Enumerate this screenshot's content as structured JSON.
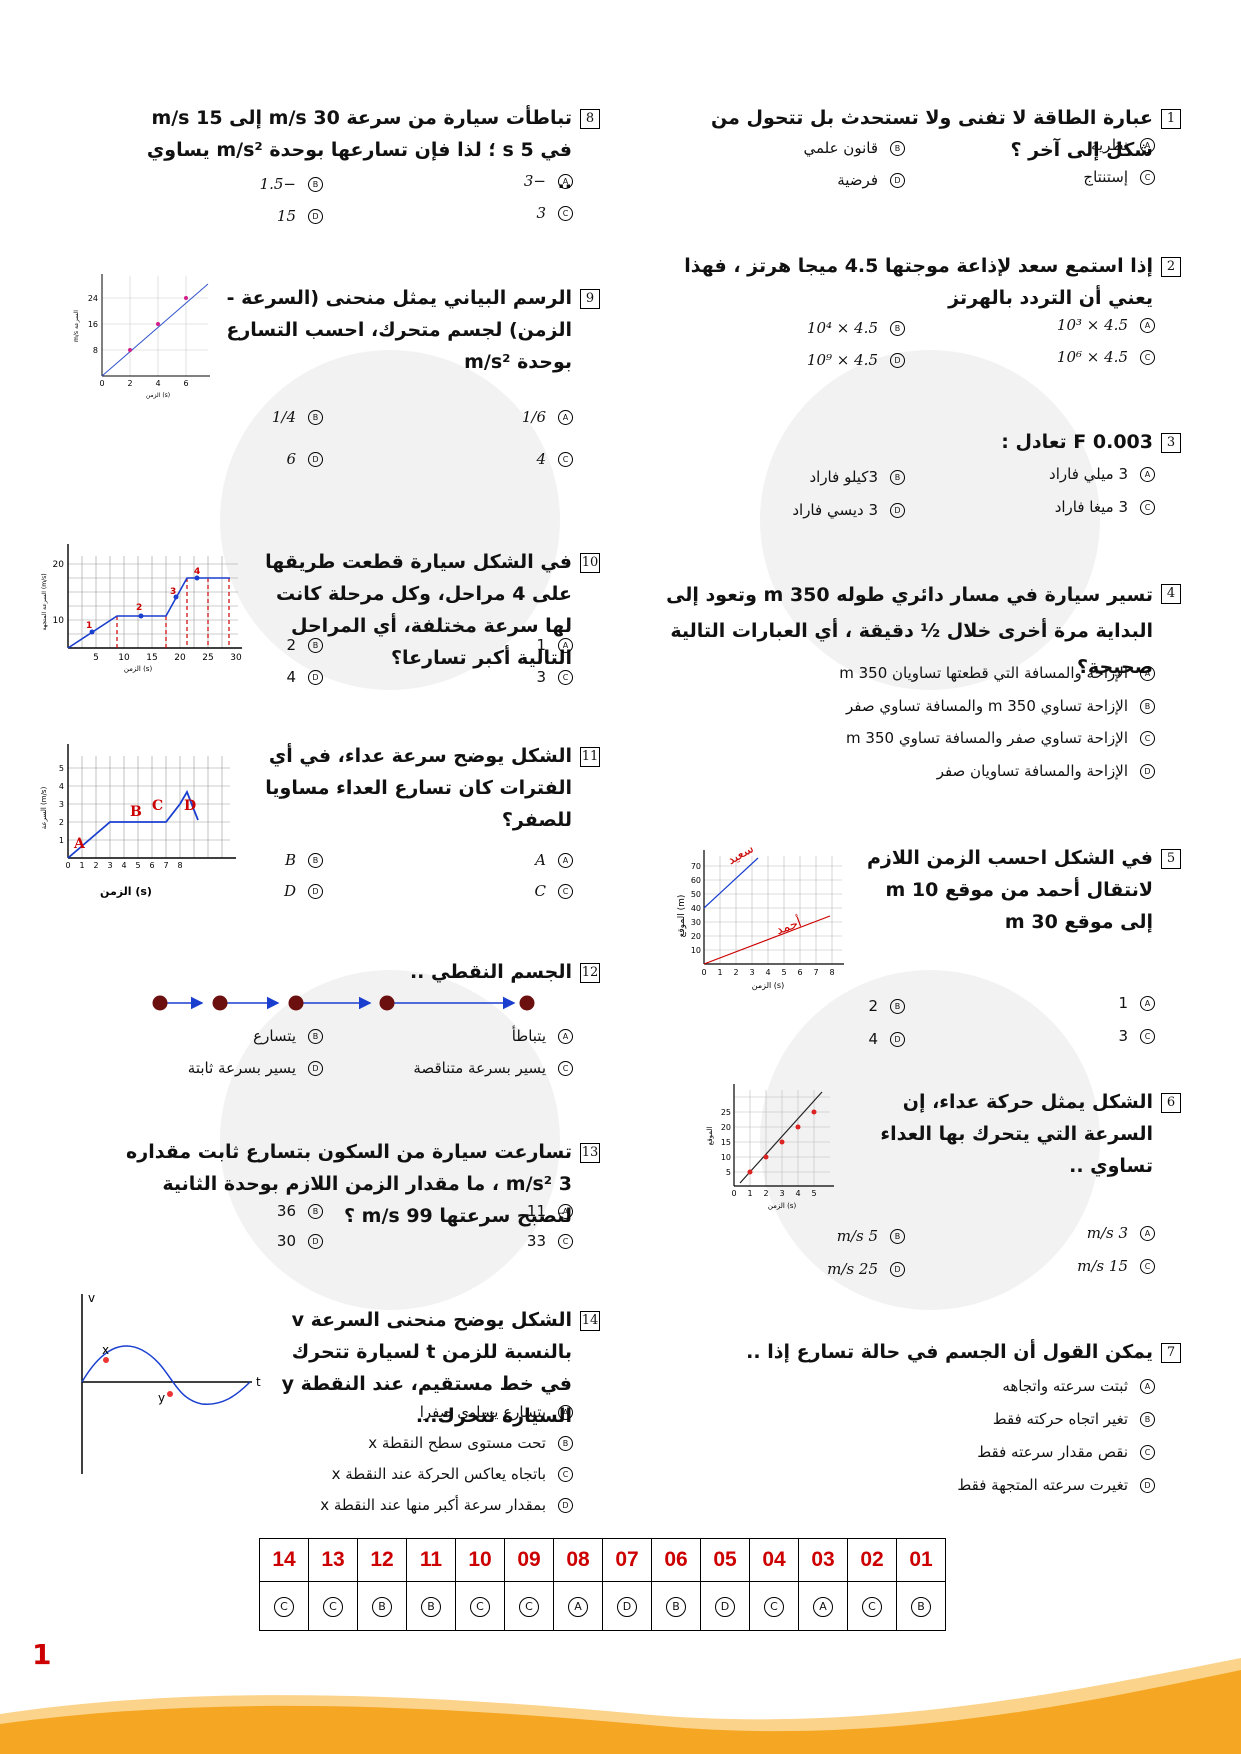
{
  "questions": {
    "q1": {
      "num": "1",
      "text": "عبارة الطاقة لا تفنى ولا تستحدث بل تتحول من شكل إلى آخر ؟",
      "options": {
        "A": "نظرية",
        "B": "قانون علمي",
        "C": "إستنتاج",
        "D": "فرضية"
      }
    },
    "q2": {
      "num": "2",
      "text": "إذا استمع سعد لإذاعة موجتها 4.5 ميجا هرتز ، فهذا يعني أن التردد بالهرتز",
      "options": {
        "A": "4.5 × 10³",
        "B": "4.5 × 10⁴",
        "C": "4.5 × 10⁶",
        "D": "4.5 × 10⁹"
      }
    },
    "q3": {
      "num": "3",
      "text": "F 0.003 تعادل :",
      "options": {
        "A": "3 ميلي فاراد",
        "B": "3كيلو فاراد",
        "C": "3 ميغا فاراد",
        "D": "3 ديسي فاراد"
      }
    },
    "q4": {
      "num": "4",
      "text": "تسير سيارة في مسار دائري طوله 350 m وتعود إلى البداية مرة أخرى خلال ½ دقيقة ، أي العبارات التالية صحيحة؟",
      "options": {
        "A": "الإزاحة والمسافة التي قطعتها تساويان 350 m",
        "B": "الإزاحة تساوي 350 m والمسافة تساوي صفر",
        "C": "الإزاحة تساوي صفر والمسافة تساوي 350 m",
        "D": "الإزاحة والمسافة تساويان صفر"
      }
    },
    "q5": {
      "num": "5",
      "text": "في الشكل احسب الزمن اللازم لانتقال أحمد من موقع 10 m إلى موقع 30 m",
      "options": {
        "A": "1",
        "B": "2",
        "C": "3",
        "D": "4"
      }
    },
    "q6": {
      "num": "6",
      "text": "الشكل يمثل حركة عداء، إن السرعة التي يتحرك بها العداء تساوي ..",
      "options": {
        "A": "3 m/s",
        "B": "5 m/s",
        "C": "15 m/s",
        "D": "25 m/s"
      }
    },
    "q7": {
      "num": "7",
      "text": "يمكن القول أن الجسم في حالة تسارع إذا ..",
      "options": {
        "A": "ثبتت سرعته واتجاهه",
        "B": "تغير اتجاه حركته فقط",
        "C": "نقص مقدار سرعته فقط",
        "D": "تغيرت سرعته المتجهة فقط"
      }
    },
    "q8": {
      "num": "8",
      "text": "تباطأت سيارة من سرعة 30 m/s إلى 15 m/s في 5 s ؛ لذا فإن تسارعها بوحدة m/s² يساوي ..",
      "options": {
        "A": "−3",
        "B": "−1.5",
        "C": "3",
        "D": "15"
      }
    },
    "q9": {
      "num": "9",
      "text": "الرسم البياني يمثل منحنى (السرعة - الزمن) لجسم متحرك، احسب التسارع بوحدة m/s²",
      "options": {
        "A": "1/6",
        "B": "1/4",
        "C": "4",
        "D": "6"
      }
    },
    "q10": {
      "num": "10",
      "text": "في الشكل سيارة قطعت طريقها على 4 مراحل، وكل مرحلة كانت لها سرعة مختلفة، أي المراحل التالية أكبر تسارعا؟",
      "options": {
        "A": "1",
        "B": "2",
        "C": "3",
        "D": "4"
      }
    },
    "q11": {
      "num": "11",
      "text": "الشكل يوضح سرعة عداء، في أي الفترات كان تسارع العداء مساويا للصفر؟",
      "options": {
        "A": "A",
        "B": "B",
        "C": "C",
        "D": "D"
      }
    },
    "q12": {
      "num": "12",
      "text": "الجسم النقطي ..",
      "options": {
        "A": "يتباطأ",
        "B": "يتسارع",
        "C": "يسير بسرعة متناقصة",
        "D": "يسير بسرعة ثابتة"
      }
    },
    "q13": {
      "num": "13",
      "text": "تسارعت سيارة من السكون بتسارع ثابت مقداره 3 m/s² ، ما مقدار الزمن اللازم بوحدة الثانية لتصبح سرعتها 99 m/s ؟",
      "options": {
        "A": "11",
        "B": "36",
        "C": "33",
        "D": "30"
      }
    },
    "q14": {
      "num": "14",
      "text": "الشكل يوضح منحنى السرعة v بالنسبة للزمن t لسيارة تتحرك في خط مستقيم، عند النقطة y السيارة تتحرك...",
      "options": {
        "A": "بتسارع يساوي صفرا",
        "B": "تحت مستوى سطح النقطة x",
        "C": "باتجاه يعاكس الحركة عند النقطة x",
        "D": "بمقدار سرعة أكبر منها عند النقطة x"
      }
    }
  },
  "figures": {
    "q5": {
      "ylabel": "الموقع (m)",
      "xlabel": "الزمن (s)",
      "label_saeed": "سعيد",
      "label_ahmed": "أحمد",
      "yticks": [
        "10",
        "20",
        "30",
        "40",
        "50",
        "60",
        "70"
      ],
      "xticks": [
        "0",
        "1",
        "2",
        "3",
        "4",
        "5",
        "6",
        "7",
        "8"
      ]
    },
    "q6": {
      "ylabel": "الموقع",
      "xlabel": "الزمن (s)",
      "yticks": [
        "5",
        "10",
        "15",
        "20",
        "25"
      ],
      "xticks": [
        "0",
        "1",
        "2",
        "3",
        "4",
        "5"
      ]
    },
    "q9": {
      "ylabel": "m/s السرعة",
      "xlabel": "الزمن (s)",
      "yticks": [
        "8",
        "16",
        "24"
      ],
      "xticks": [
        "0",
        "2",
        "4",
        "6"
      ]
    },
    "q10": {
      "ylabel": "السرعة المتجهة (m/s)",
      "xlabel": "الزمن (s)",
      "yticks": [
        "10",
        "20"
      ],
      "xticks": [
        "5",
        "10",
        "15",
        "20",
        "25",
        "30"
      ],
      "stages": [
        "1",
        "2",
        "3",
        "4"
      ]
    },
    "q11": {
      "ylabel": "السرعة (m/s)",
      "xlabel": "الزمن (s)",
      "yticks": [
        "1",
        "2",
        "3",
        "4",
        "5"
      ],
      "xticks": [
        "0",
        "1",
        "2",
        "3",
        "4",
        "5",
        "6",
        "7",
        "8"
      ],
      "segments": [
        "A",
        "B",
        "C",
        "D"
      ]
    },
    "q14": {
      "v": "v",
      "t": "t",
      "x": "x",
      "y": "y"
    }
  },
  "answer_key": {
    "numbers": [
      "14",
      "13",
      "12",
      "11",
      "10",
      "09",
      "08",
      "07",
      "06",
      "05",
      "04",
      "03",
      "02",
      "01"
    ],
    "answers": [
      "C",
      "C",
      "B",
      "B",
      "C",
      "C",
      "A",
      "D",
      "B",
      "D",
      "C",
      "A",
      "C",
      "B"
    ]
  },
  "page_number": "1",
  "colors": {
    "accent_red": "#cc0000",
    "footer_orange": "#f5a623",
    "line_blue": "#1a3fcf"
  }
}
